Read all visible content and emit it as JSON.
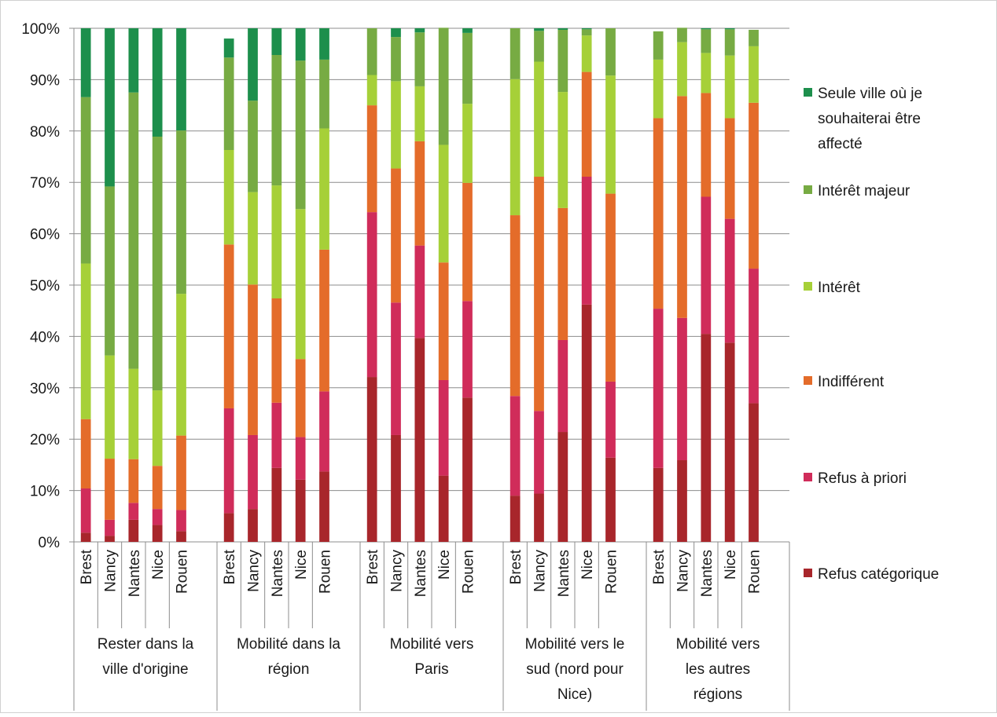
{
  "chart_data": {
    "type": "bar",
    "stacked": true,
    "stacking": "percent",
    "title": "",
    "xlabel": "",
    "ylabel": "",
    "ylim": [
      0,
      100
    ],
    "yticks": [
      "0%",
      "10%",
      "20%",
      "30%",
      "40%",
      "50%",
      "60%",
      "70%",
      "80%",
      "90%",
      "100%"
    ],
    "grid": "horizontal",
    "legend_position": "right",
    "groups": [
      {
        "label": "Rester dans la ville d'origine",
        "label_lines": [
          "Rester dans la",
          "ville d'origine"
        ]
      },
      {
        "label": "Mobilité dans la région",
        "label_lines": [
          "Mobilité dans la",
          "région"
        ]
      },
      {
        "label": "Mobilité vers Paris",
        "label_lines": [
          "Mobilité vers",
          "Paris"
        ]
      },
      {
        "label": "Mobilité vers le sud (nord pour Nice)",
        "label_lines": [
          "Mobilité vers le",
          "sud (nord pour",
          "Nice)"
        ]
      },
      {
        "label": "Mobilité vers les autres régions",
        "label_lines": [
          "Mobilité vers",
          "les autres",
          "régions"
        ]
      }
    ],
    "categories": [
      "Brest",
      "Nancy",
      "Nantes",
      "Nice",
      "Rouen"
    ],
    "series": [
      {
        "name": "Refus catégorique",
        "color": "#a8262b",
        "values": [
          [
            1.8,
            1.2,
            4.3,
            3.3,
            2.1
          ],
          [
            5.6,
            6.4,
            14.4,
            12.1,
            13.7
          ],
          [
            32.1,
            20.8,
            39.7,
            12.9,
            28.1
          ],
          [
            9.0,
            9.4,
            21.4,
            46.2,
            16.4
          ],
          [
            14.4,
            15.9,
            40.5,
            38.8,
            27.0
          ]
        ]
      },
      {
        "name": "Refus à priori",
        "color": "#d02c5a",
        "values": [
          [
            8.6,
            3.1,
            3.3,
            3.1,
            4.1
          ],
          [
            20.4,
            14.4,
            12.7,
            8.3,
            15.6
          ],
          [
            32.1,
            25.8,
            18.0,
            18.6,
            18.8
          ],
          [
            19.4,
            16.1,
            17.9,
            24.9,
            14.8
          ],
          [
            31.0,
            27.7,
            26.7,
            24.1,
            26.2
          ]
        ]
      },
      {
        "name": "Indifférent",
        "color": "#e46c2a",
        "values": [
          [
            13.5,
            11.9,
            8.5,
            8.4,
            14.5
          ],
          [
            31.9,
            29.3,
            20.3,
            15.2,
            27.6
          ],
          [
            20.8,
            26.1,
            20.3,
            22.9,
            23.0
          ],
          [
            35.2,
            45.6,
            25.7,
            20.4,
            36.6
          ],
          [
            37.1,
            43.2,
            20.2,
            19.6,
            32.3
          ]
        ]
      },
      {
        "name": "Intérêt",
        "color": "#a6d038",
        "values": [
          [
            30.3,
            20.1,
            17.6,
            14.7,
            27.6
          ],
          [
            18.4,
            18.0,
            22.0,
            29.2,
            23.6
          ],
          [
            5.9,
            17.0,
            10.7,
            22.9,
            15.4
          ],
          [
            26.5,
            22.4,
            22.6,
            7.1,
            23.0
          ],
          [
            11.4,
            10.5,
            7.8,
            12.2,
            11.0
          ]
        ]
      },
      {
        "name": "Intérêt majeur",
        "color": "#77ab43",
        "values": [
          [
            32.4,
            32.9,
            53.8,
            49.4,
            31.8
          ],
          [
            18.0,
            17.8,
            25.4,
            28.9,
            13.4
          ],
          [
            9.1,
            8.6,
            10.5,
            22.8,
            13.8
          ],
          [
            9.9,
            6.0,
            12.1,
            1.2,
            9.2
          ],
          [
            5.5,
            2.8,
            4.6,
            5.1,
            3.2
          ]
        ]
      },
      {
        "name": "Seule ville où je souhaiterai être affecté",
        "color": "#1d8f4c",
        "legend_lines": [
          "Seule ville où je",
          "souhaiterai être",
          "affecté"
        ],
        "values": [
          [
            13.4,
            30.8,
            12.5,
            21.1,
            19.9
          ],
          [
            3.7,
            14.1,
            5.2,
            6.3,
            6.1
          ],
          [
            0.0,
            1.7,
            0.8,
            0.0,
            0.9
          ],
          [
            0.0,
            0.5,
            0.3,
            0.2,
            0.0
          ],
          [
            0.0,
            0.0,
            0.2,
            0.2,
            0.0
          ]
        ]
      }
    ]
  }
}
